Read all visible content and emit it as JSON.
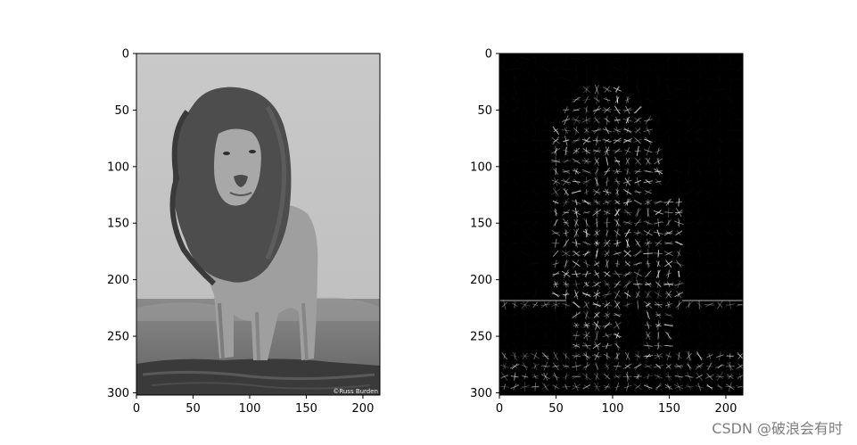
{
  "figure": {
    "watermark": "CSDN @破浪会有时"
  },
  "chart_data": [
    {
      "type": "image",
      "content": "grayscale photo of a standing lion",
      "credit_text": "©Russ Burden",
      "xlim": [
        0,
        215
      ],
      "ylim": [
        302,
        0
      ],
      "xticks": [
        0,
        50,
        100,
        150,
        200
      ],
      "yticks": [
        0,
        50,
        100,
        150,
        200,
        250,
        300
      ]
    },
    {
      "type": "image",
      "content": "HOG (histogram of oriented gradients) visualization of the lion photo",
      "xlim": [
        0,
        215
      ],
      "ylim": [
        302,
        0
      ],
      "xticks": [
        0,
        50,
        100,
        150,
        200
      ],
      "yticks": [
        0,
        50,
        100,
        150,
        200,
        250,
        300
      ]
    }
  ]
}
